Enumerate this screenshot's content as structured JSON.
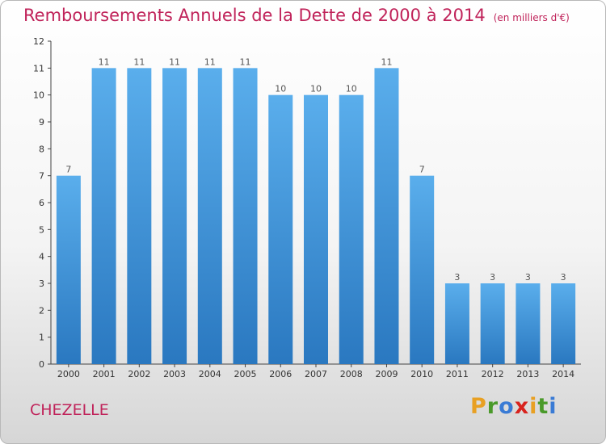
{
  "chart_data": {
    "type": "bar",
    "title": "Remboursements Annuels de la Dette de 2000 à 2014",
    "subtitle": "(en milliers d'€)",
    "categories": [
      "2000",
      "2001",
      "2002",
      "2003",
      "2004",
      "2005",
      "2006",
      "2007",
      "2008",
      "2009",
      "2010",
      "2011",
      "2012",
      "2013",
      "2014"
    ],
    "values": [
      7,
      11,
      11,
      11,
      11,
      11,
      10,
      10,
      10,
      11,
      7,
      3,
      3,
      3,
      3
    ],
    "ylim": [
      0,
      12
    ],
    "yticks": [
      0,
      1,
      2,
      3,
      4,
      5,
      6,
      7,
      8,
      9,
      10,
      11,
      12
    ],
    "grid": false,
    "bar_color": "#3a8fd6"
  },
  "place": "CHEZELLE",
  "logo": {
    "letters": [
      "P",
      "r",
      "o",
      "x",
      "i",
      "t",
      "i"
    ],
    "colors": [
      "#e8a023",
      "#4a9a2a",
      "#3a7bd5",
      "#d8231e",
      "#e8a023",
      "#4a9a2a",
      "#3a7bd5"
    ]
  }
}
